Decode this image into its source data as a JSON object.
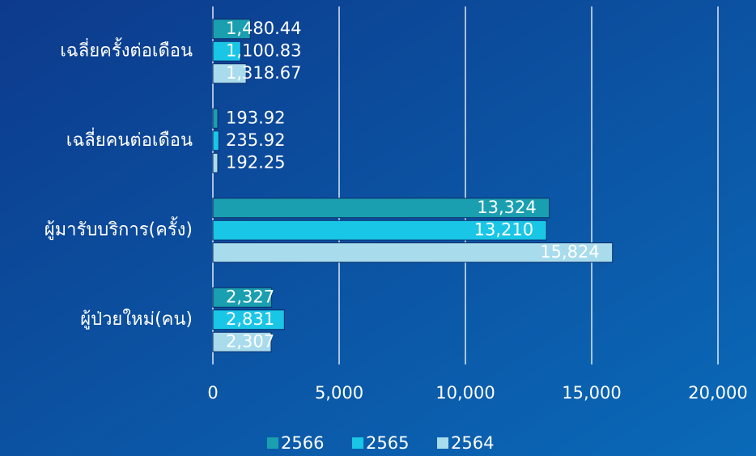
{
  "chart_data": {
    "type": "bar",
    "orientation": "horizontal",
    "categories": [
      "เฉลี่ยครั้งต่อเดือน",
      "เฉลี่ยคนต่อเดือน",
      "ผู้มารับบริการ(ครั้ง)",
      "ผู้ป่วยใหม่(คน)"
    ],
    "series": [
      {
        "name": "2566",
        "color": "#1a9fb0",
        "values": [
          1480.44,
          193.92,
          13324,
          2327
        ],
        "value_labels": [
          "1,480.44",
          "193.92",
          "13,324",
          "2,327"
        ]
      },
      {
        "name": "2565",
        "color": "#19c6e6",
        "values": [
          1100.83,
          235.92,
          13210,
          2831
        ],
        "value_labels": [
          "1,100.83",
          "235.92",
          "13,210",
          "2,831"
        ]
      },
      {
        "name": "2564",
        "color": "#a8dbec",
        "values": [
          1318.67,
          192.25,
          15824,
          2307
        ],
        "value_labels": [
          "1,318.67",
          "192.25",
          "15,824",
          "2,307"
        ]
      }
    ],
    "xlim": [
      0,
      20000
    ],
    "xticks": [
      0,
      {
        "value": 5000,
        "label": "5,000"
      },
      {
        "value": 10000,
        "label": "10,000"
      },
      {
        "value": 15000,
        "label": "15,000"
      },
      {
        "value": 20000,
        "label": "20,000"
      }
    ],
    "grid": true,
    "legend": "bottom"
  }
}
